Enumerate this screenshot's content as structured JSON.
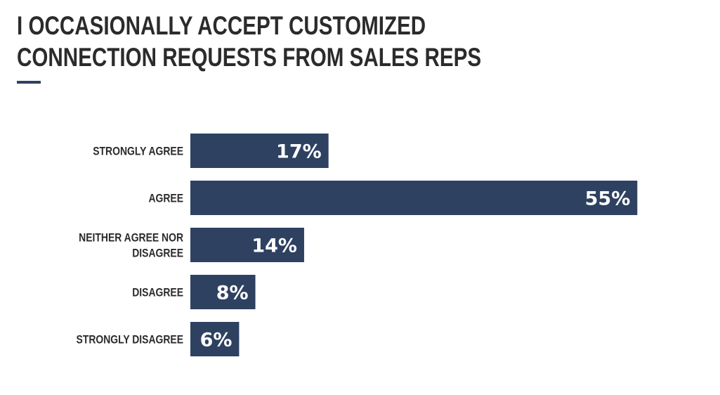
{
  "title_lines": [
    "I OCCASIONALLY ACCEPT CUSTOMIZED",
    "CONNECTION REQUESTS FROM SALES REPS"
  ],
  "colors": {
    "bar": "#2e4161",
    "accent": "#2e4161",
    "text": "#2b2b2b"
  },
  "chart_data": {
    "type": "bar",
    "orientation": "horizontal",
    "title": "I OCCASIONALLY ACCEPT CUSTOMIZED CONNECTION REQUESTS FROM SALES REPS",
    "categories": [
      [
        "STRONGLY AGREE"
      ],
      [
        "AGREE"
      ],
      [
        "NEITHER AGREE NOR",
        "DISAGREE"
      ],
      [
        "DISAGREE"
      ],
      [
        "STRONGLY DISAGREE"
      ]
    ],
    "values": [
      17,
      55,
      14,
      8,
      6
    ],
    "value_labels": [
      "17%",
      "55%",
      "14%",
      "8%",
      "6%"
    ],
    "xlim": [
      0,
      58
    ],
    "grid": false,
    "legend": "none"
  }
}
